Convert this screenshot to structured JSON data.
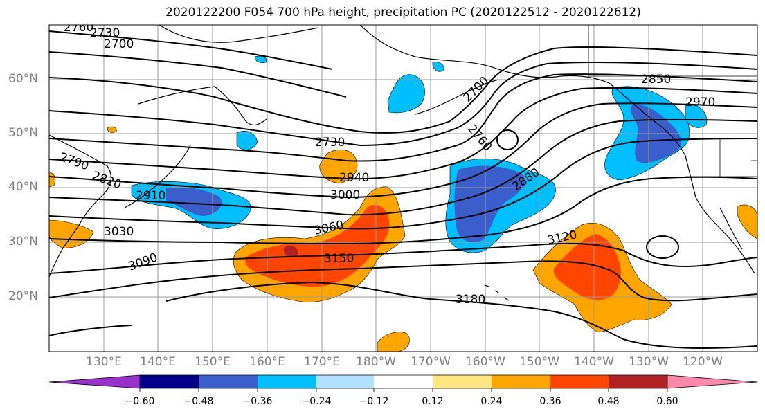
{
  "title": "2020122200 F054 700 hPa height, precipitation PC (2020122512 - 2020122612)",
  "lat_labels": [
    "60°N",
    "50°N",
    "40°N",
    "30°N",
    "20°N"
  ],
  "lon_labels": [
    "130°E",
    "140°E",
    "150°E",
    "160°E",
    "170°E",
    "180°W",
    "170°W",
    "160°W",
    "150°W",
    "140°W",
    "130°W",
    "120°W"
  ],
  "contour_labels": [
    "2760",
    "2730",
    "2700",
    "2790",
    "2820",
    "2910",
    "3030",
    "3090",
    "2730",
    "2940",
    "3000",
    "3060",
    "3150",
    "3180",
    "2700",
    "2760",
    "2880",
    "3120",
    "2850",
    "2970"
  ],
  "colorbar": {
    "ticks": [
      "−0.60",
      "−0.48",
      "−0.36",
      "−0.24",
      "−0.12",
      "0.12",
      "0.24",
      "0.36",
      "0.48",
      "0.60"
    ],
    "colors": [
      "#9932cc",
      "#00008b",
      "#3a5fcd",
      "#00bfff",
      "#b0e2ff",
      "#ffffff",
      "#ffe680",
      "#ffa500",
      "#ff4500",
      "#b22222",
      "#ff88aa"
    ]
  },
  "colors": {
    "neg_light": "#00bfff",
    "neg_mid": "#3a5fcd",
    "pos_light": "#ffa500",
    "pos_mid": "#ff4500",
    "pos_dark": "#b22222",
    "pos_faint": "#ffe680"
  }
}
